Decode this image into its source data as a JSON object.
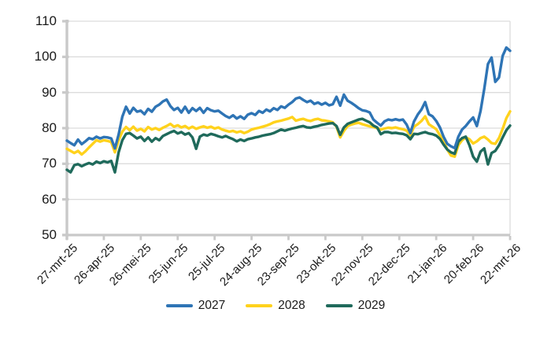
{
  "chart_data": {
    "type": "line",
    "title": "",
    "xlabel": "",
    "ylabel": "",
    "grid": true,
    "legend_position": "bottom",
    "y_axis": {
      "min": 50,
      "max": 110,
      "ticks": [
        50,
        60,
        70,
        80,
        90,
        100,
        110
      ]
    },
    "x_axis": {
      "tick_labels": [
        "27-mrt-25",
        "26-apr-25",
        "26-mei-25",
        "25-jun-25",
        "25-jul-25",
        "24-aug-25",
        "23-sep-25",
        "23-okt-25",
        "22-nov-25",
        "22-dec-25",
        "21-jan-26",
        "20-feb-26",
        "22-mrt-26"
      ],
      "tick_days": [
        0,
        30,
        60,
        90,
        120,
        150,
        180,
        210,
        240,
        270,
        300,
        330,
        360
      ]
    },
    "x_step_days": 3,
    "x_total_days": 360,
    "series": [
      {
        "name": "2027",
        "color": "#2E74B5",
        "values": [
          76.5,
          75.8,
          75.2,
          76.8,
          75.5,
          76.3,
          77.2,
          76.9,
          77.6,
          77.1,
          77.5,
          77.4,
          77.1,
          74.3,
          78.2,
          83.2,
          86.0,
          84.1,
          85.7,
          84.6,
          84.9,
          83.9,
          85.4,
          84.6,
          86.0,
          86.6,
          87.5,
          88.0,
          86.2,
          85.1,
          85.7,
          84.4,
          86.0,
          84.3,
          85.6,
          84.8,
          85.7,
          84.3,
          85.6,
          85.0,
          84.7,
          84.9,
          84.1,
          83.4,
          82.9,
          83.6,
          82.7,
          83.3,
          82.6,
          83.8,
          84.2,
          83.7,
          84.8,
          84.3,
          85.2,
          84.7,
          85.6,
          85.1,
          86.1,
          85.7,
          86.6,
          87.3,
          88.3,
          88.6,
          87.9,
          87.3,
          87.7,
          86.8,
          87.2,
          86.6,
          87.1,
          86.4,
          86.7,
          88.8,
          86.3,
          89.4,
          87.7,
          87.1,
          86.4,
          85.6,
          85.0,
          84.8,
          84.4,
          82.4,
          81.5,
          80.7,
          81.9,
          82.4,
          82.2,
          82.5,
          82.2,
          82.4,
          81.0,
          78.6,
          81.9,
          83.8,
          85.2,
          87.3,
          83.9,
          83.3,
          82.0,
          80.2,
          77.6,
          75.6,
          74.9,
          74.4,
          77.6,
          79.6,
          80.6,
          81.9,
          83.0,
          80.6,
          84.8,
          91.0,
          98.0,
          99.8,
          93.0,
          94.2,
          100.3,
          102.6,
          101.7
        ]
      },
      {
        "name": "2028",
        "color": "#FFD21C",
        "values": [
          74.2,
          73.6,
          73.0,
          73.6,
          72.6,
          73.5,
          74.6,
          75.6,
          76.6,
          76.2,
          76.6,
          76.4,
          76.1,
          73.2,
          76.6,
          79.0,
          80.3,
          79.4,
          80.4,
          79.3,
          79.8,
          79.1,
          80.3,
          79.6,
          80.0,
          79.5,
          80.1,
          80.6,
          81.2,
          80.4,
          80.8,
          80.2,
          80.6,
          79.9,
          80.4,
          79.8,
          80.2,
          80.5,
          80.1,
          80.4,
          79.9,
          80.2,
          79.6,
          79.3,
          79.0,
          79.2,
          78.8,
          79.1,
          78.6,
          79.0,
          79.6,
          79.9,
          80.1,
          80.4,
          80.7,
          81.1,
          81.6,
          81.9,
          82.1,
          82.4,
          82.7,
          83.1,
          82.1,
          82.4,
          82.6,
          82.2,
          82.0,
          82.4,
          82.6,
          82.2,
          82.1,
          81.9,
          81.6,
          80.4,
          77.4,
          79.2,
          80.6,
          81.0,
          81.3,
          81.5,
          81.1,
          80.8,
          80.5,
          80.3,
          80.0,
          79.6,
          79.9,
          80.1,
          80.0,
          80.2,
          79.9,
          79.7,
          79.3,
          78.0,
          80.4,
          81.1,
          82.0,
          83.3,
          81.1,
          80.4,
          79.7,
          78.0,
          76.4,
          74.0,
          72.3,
          72.0,
          75.2,
          76.6,
          77.4,
          76.9,
          75.7,
          76.3,
          77.2,
          77.6,
          76.8,
          75.8,
          75.6,
          77.2,
          79.8,
          82.8,
          84.7
        ]
      },
      {
        "name": "2029",
        "color": "#1F6A5B",
        "values": [
          68.3,
          67.6,
          69.6,
          69.9,
          69.3,
          69.8,
          70.2,
          69.8,
          70.6,
          70.2,
          70.7,
          70.4,
          70.8,
          67.6,
          73.2,
          76.6,
          78.4,
          78.6,
          77.9,
          77.1,
          77.6,
          76.4,
          77.4,
          76.2,
          77.2,
          76.6,
          77.8,
          78.3,
          78.8,
          79.2,
          78.5,
          78.9,
          78.2,
          78.6,
          77.4,
          74.2,
          77.6,
          78.2,
          77.9,
          78.4,
          78.1,
          77.7,
          77.4,
          77.8,
          77.3,
          76.9,
          76.3,
          76.8,
          76.4,
          76.9,
          77.1,
          77.4,
          77.6,
          77.9,
          78.1,
          78.3,
          78.6,
          79.1,
          79.6,
          79.3,
          79.6,
          79.9,
          80.1,
          80.4,
          80.6,
          80.2,
          80.1,
          80.4,
          80.6,
          80.9,
          81.1,
          81.3,
          81.4,
          80.6,
          78.1,
          80.2,
          81.2,
          81.6,
          82.0,
          82.4,
          82.6,
          82.1,
          81.6,
          80.7,
          80.2,
          78.3,
          78.9,
          78.9,
          78.6,
          78.7,
          78.5,
          78.4,
          78.0,
          76.9,
          78.4,
          78.3,
          78.6,
          78.9,
          78.5,
          78.3,
          77.9,
          77.0,
          75.4,
          74.0,
          73.2,
          72.8,
          76.2,
          77.2,
          77.6,
          75.2,
          72.0,
          70.6,
          73.4,
          74.3,
          69.8,
          73.0,
          73.6,
          75.2,
          77.4,
          79.4,
          80.7
        ]
      }
    ],
    "legend_entries": [
      "2027",
      "2028",
      "2029"
    ],
    "colors": {
      "grid": "#DCDCDC",
      "axis": "#C9C9C9",
      "text": "#1A1A1A",
      "background": "#FFFFFF"
    }
  }
}
